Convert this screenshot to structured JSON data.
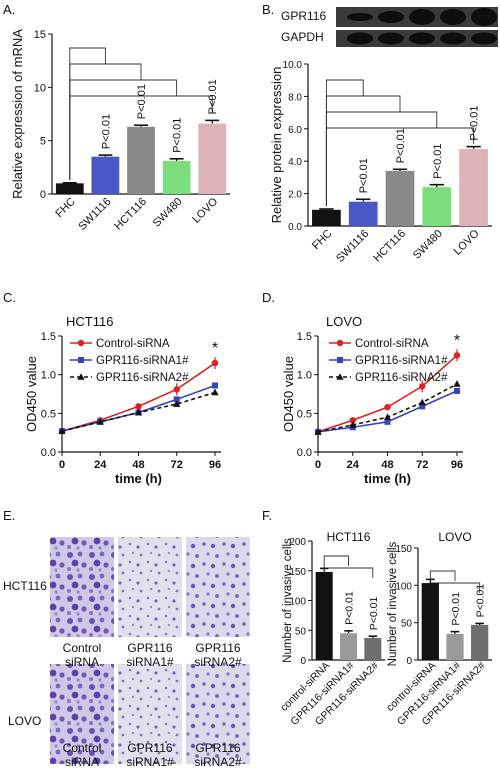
{
  "panel_letters": {
    "A": "A.",
    "B": "B.",
    "C": "C.",
    "D": "D.",
    "E": "E.",
    "F": "F."
  },
  "blot": {
    "rows": [
      "GPR116",
      "GAPDH"
    ]
  },
  "micrographs": {
    "row_labels": [
      "HCT116",
      "LOVO"
    ],
    "col_labels": [
      [
        "Control",
        "siRNA"
      ],
      [
        "GPR116",
        "siRNA1#"
      ],
      [
        "GPR116",
        "siRNA2#"
      ]
    ]
  },
  "chart_data": [
    {
      "panel": "A",
      "type": "bar",
      "ylabel": "Relative expression of mRNA",
      "ylim": [
        0,
        15
      ],
      "yticks": [
        0,
        5,
        10,
        15
      ],
      "categories": [
        "FHC",
        "SW1116",
        "HCT116",
        "SW480",
        "LOVO"
      ],
      "values": [
        1.0,
        3.5,
        6.3,
        3.1,
        6.6
      ],
      "errors": [
        0.05,
        0.15,
        0.15,
        0.2,
        0.3
      ],
      "colors": [
        "#111111",
        "#4a57c6",
        "#8a8a8a",
        "#7dde7d",
        "#deb3b8"
      ],
      "annotations": [
        "",
        "P<0.01",
        "P<0.01",
        "P<0.01",
        "P<0.01"
      ]
    },
    {
      "panel": "B",
      "type": "bar",
      "ylabel": "Relative protein expression",
      "ylim": [
        0,
        10
      ],
      "yticks": [
        0.0,
        2.0,
        4.0,
        6.0,
        8.0,
        10.0
      ],
      "categories": [
        "FHC",
        "SW1116",
        "HCT116",
        "SW480",
        "LOVO"
      ],
      "values": [
        1.0,
        1.5,
        3.4,
        2.4,
        4.75
      ],
      "errors": [
        0.05,
        0.15,
        0.1,
        0.15,
        0.15
      ],
      "colors": [
        "#111111",
        "#4a57c6",
        "#8a8a8a",
        "#7dde7d",
        "#deb3b8"
      ],
      "annotations": [
        "",
        "P<0.01",
        "P<0.01",
        "P<0.01",
        "P<0.01"
      ]
    },
    {
      "panel": "C",
      "type": "line",
      "title": "HCT116",
      "xlabel": "time (h)",
      "ylabel": "OD450 value",
      "x": [
        0,
        24,
        48,
        72,
        96
      ],
      "xticks": [
        0,
        24,
        48,
        72,
        96
      ],
      "ylim": [
        0,
        1.5
      ],
      "yticks": [
        0.0,
        0.5,
        1.0,
        1.5
      ],
      "series": [
        {
          "name": "Control-siRNA",
          "values": [
            0.27,
            0.41,
            0.59,
            0.81,
            1.15
          ],
          "color": "#e02020",
          "marker": "circle",
          "dash": false
        },
        {
          "name": "GPR116-siRNA1#",
          "values": [
            0.27,
            0.39,
            0.51,
            0.68,
            0.86
          ],
          "color": "#3545c0",
          "marker": "square",
          "dash": false
        },
        {
          "name": "GPR116-siRNA2#",
          "values": [
            0.27,
            0.39,
            0.51,
            0.62,
            0.77
          ],
          "color": "#111111",
          "marker": "triangle",
          "dash": true
        }
      ],
      "annotation": "*"
    },
    {
      "panel": "D",
      "type": "line",
      "title": "LOVO",
      "xlabel": "time (h)",
      "ylabel": "OD450 value",
      "x": [
        0,
        24,
        48,
        72,
        96
      ],
      "xticks": [
        0,
        24,
        48,
        72,
        96
      ],
      "ylim": [
        0,
        1.5
      ],
      "yticks": [
        0.0,
        0.5,
        1.0,
        1.5
      ],
      "series": [
        {
          "name": "Control-siRNA",
          "values": [
            0.26,
            0.41,
            0.58,
            0.85,
            1.25
          ],
          "color": "#e02020",
          "marker": "circle",
          "dash": false
        },
        {
          "name": "GPR116-siRNA1#",
          "values": [
            0.26,
            0.32,
            0.39,
            0.59,
            0.79
          ],
          "color": "#3545c0",
          "marker": "square",
          "dash": false
        },
        {
          "name": "GPR116-siRNA2#",
          "values": [
            0.26,
            0.35,
            0.45,
            0.64,
            0.88
          ],
          "color": "#111111",
          "marker": "triangle",
          "dash": true
        }
      ],
      "annotation": "*"
    },
    {
      "panel": "F1",
      "type": "bar",
      "title": "HCT116",
      "ylabel": "Number of invasive cells",
      "ylim": [
        0,
        200
      ],
      "yticks": [
        0,
        50,
        100,
        150,
        200
      ],
      "categories": [
        "control-siRNA",
        "GPR116-siRNA1#",
        "GPR116-siRNA2#"
      ],
      "values": [
        148,
        45,
        37
      ],
      "errors": [
        6,
        4,
        3
      ],
      "colors": [
        "#111111",
        "#9a9a9a",
        "#6e6e6e"
      ],
      "annotations": [
        "",
        "P<0.01",
        "P<0.01"
      ]
    },
    {
      "panel": "F2",
      "type": "bar",
      "title": "LOVO",
      "ylabel": "Number of invasive cells",
      "ylim": [
        0,
        150
      ],
      "yticks": [
        0,
        50,
        100,
        150
      ],
      "categories": [
        "control-siRNA",
        "GPR116-siRNA1#",
        "GPR116-siRNA2#"
      ],
      "values": [
        103,
        35,
        47
      ],
      "errors": [
        5,
        3,
        2
      ],
      "colors": [
        "#111111",
        "#9a9a9a",
        "#6e6e6e"
      ],
      "annotations": [
        "",
        "P<0.01",
        "P<0.01"
      ]
    }
  ]
}
